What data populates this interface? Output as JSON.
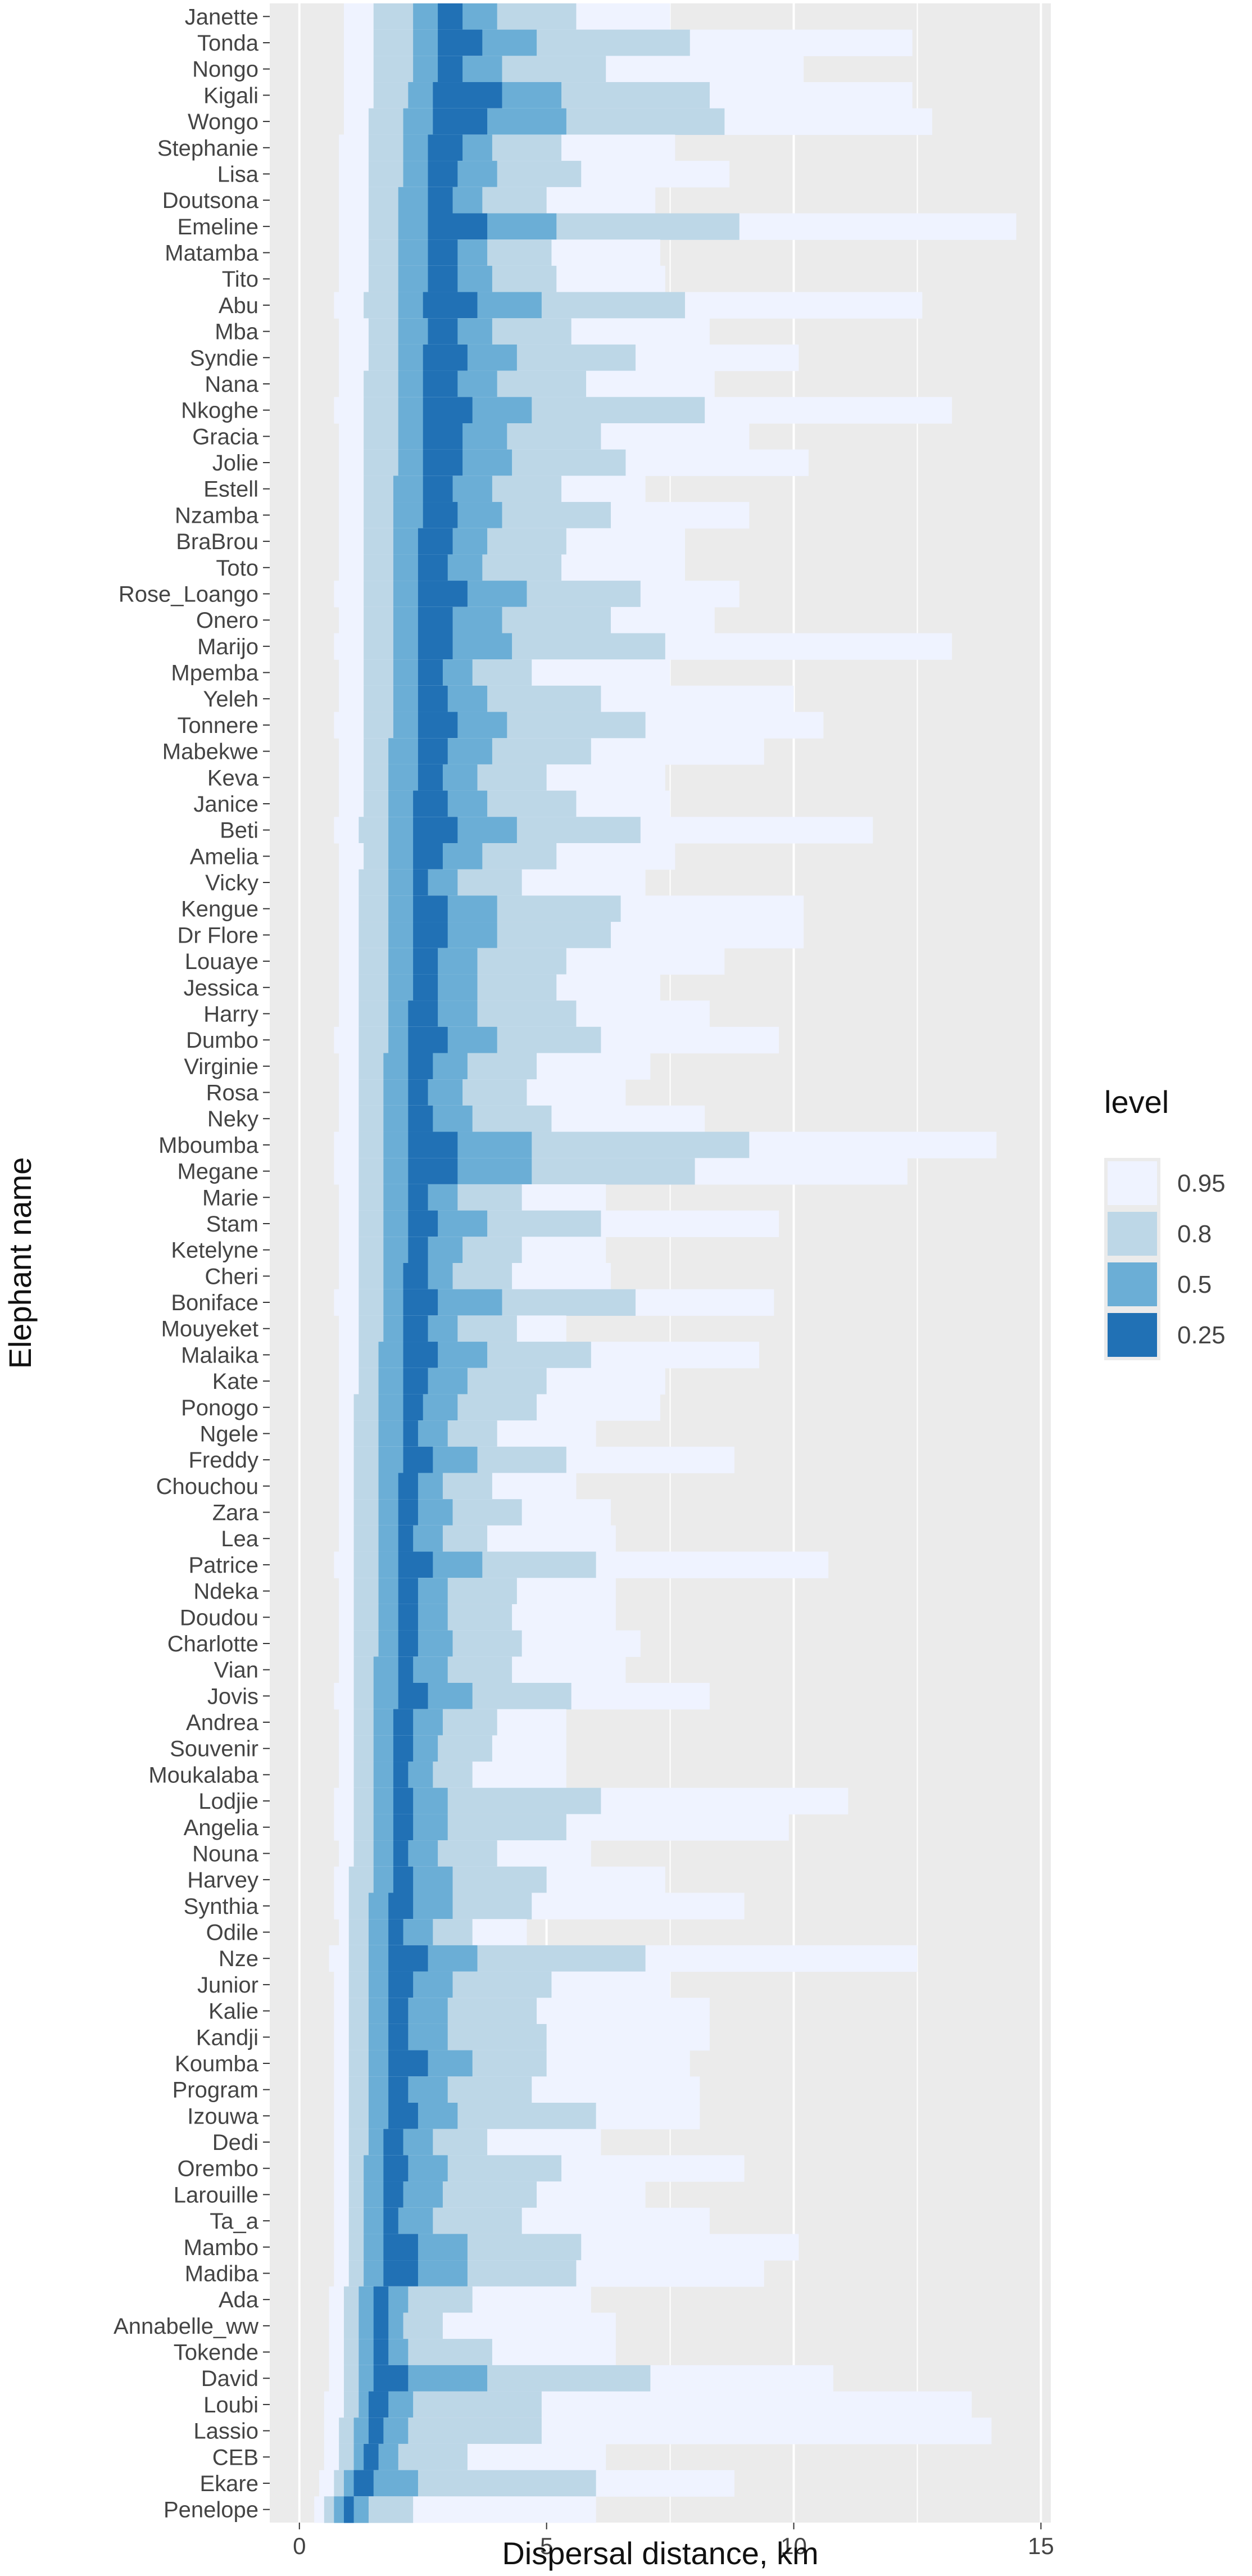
{
  "chart_data": {
    "type": "bar",
    "subtype": "stacked-interval-ranges",
    "title": "",
    "xlabel": "Dispersal distance, km",
    "ylabel": "Elephant name",
    "xlim": [
      -0.6,
      15.2
    ],
    "x_ticks": [
      0,
      5,
      10,
      15
    ],
    "x_tick_labels": [
      "0",
      "5",
      "10",
      "15"
    ],
    "grid": true,
    "legend": {
      "title": "level",
      "placement": "right",
      "entries": [
        {
          "label": "0.95",
          "color": "#eff3ff"
        },
        {
          "label": "0.8",
          "color": "#bdd7e7"
        },
        {
          "label": "0.5",
          "color": "#6baed6"
        },
        {
          "label": "0.25",
          "color": "#2171b5"
        }
      ]
    },
    "levels": [
      "0.95",
      "0.8",
      "0.5",
      "0.25"
    ],
    "colors": {
      "0.95": "#eff3ff",
      "0.8": "#bdd7e7",
      "0.5": "#6baed6",
      "0.25": "#2171b5",
      "panel": "#ebebeb",
      "grid": "#ffffff"
    },
    "interval_order": "[lo_0.95, hi_0.95, lo_0.8, hi_0.8, lo_0.5, hi_0.5, lo_0.25, hi_0.25] in km",
    "series": [
      {
        "name": "Janette",
        "intervals": [
          0.9,
          7.5,
          1.5,
          5.6,
          2.3,
          4.0,
          2.8,
          3.3
        ]
      },
      {
        "name": "Tonda",
        "intervals": [
          0.9,
          12.4,
          1.5,
          7.9,
          2.3,
          4.8,
          2.8,
          3.7
        ]
      },
      {
        "name": "Nongo",
        "intervals": [
          0.9,
          10.2,
          1.5,
          6.2,
          2.3,
          4.1,
          2.8,
          3.3
        ]
      },
      {
        "name": "Kigali",
        "intervals": [
          0.9,
          12.4,
          1.5,
          8.3,
          2.2,
          5.3,
          2.7,
          4.1
        ]
      },
      {
        "name": "Wongo",
        "intervals": [
          0.9,
          12.8,
          1.4,
          8.6,
          2.1,
          5.4,
          2.7,
          3.8
        ]
      },
      {
        "name": "Stephanie",
        "intervals": [
          0.8,
          7.6,
          1.4,
          5.3,
          2.1,
          3.9,
          2.6,
          3.3
        ]
      },
      {
        "name": "Lisa",
        "intervals": [
          0.8,
          8.7,
          1.4,
          5.7,
          2.1,
          4.0,
          2.6,
          3.2
        ]
      },
      {
        "name": "Doutsona",
        "intervals": [
          0.8,
          7.2,
          1.4,
          5.0,
          2.0,
          3.7,
          2.6,
          3.1
        ]
      },
      {
        "name": "Emeline",
        "intervals": [
          0.8,
          14.5,
          1.4,
          8.9,
          2.0,
          5.2,
          2.6,
          3.8
        ]
      },
      {
        "name": "Matamba",
        "intervals": [
          0.8,
          7.3,
          1.4,
          5.1,
          2.0,
          3.8,
          2.6,
          3.2
        ]
      },
      {
        "name": "Tito",
        "intervals": [
          0.8,
          7.4,
          1.4,
          5.2,
          2.0,
          3.9,
          2.6,
          3.2
        ]
      },
      {
        "name": "Abu",
        "intervals": [
          0.7,
          12.6,
          1.3,
          7.8,
          2.0,
          4.9,
          2.5,
          3.6
        ]
      },
      {
        "name": "Mba",
        "intervals": [
          0.8,
          8.3,
          1.4,
          5.5,
          2.0,
          3.9,
          2.6,
          3.2
        ]
      },
      {
        "name": "Syndie",
        "intervals": [
          0.8,
          10.1,
          1.4,
          6.8,
          2.0,
          4.4,
          2.5,
          3.4
        ]
      },
      {
        "name": "Nana",
        "intervals": [
          0.8,
          8.4,
          1.3,
          5.8,
          2.0,
          4.0,
          2.5,
          3.2
        ]
      },
      {
        "name": "Nkoghe",
        "intervals": [
          0.7,
          13.2,
          1.3,
          8.2,
          2.0,
          4.7,
          2.5,
          3.5
        ]
      },
      {
        "name": "Gracia",
        "intervals": [
          0.8,
          9.1,
          1.3,
          6.1,
          2.0,
          4.2,
          2.5,
          3.3
        ]
      },
      {
        "name": "Jolie",
        "intervals": [
          0.8,
          10.3,
          1.3,
          6.6,
          2.0,
          4.3,
          2.5,
          3.3
        ]
      },
      {
        "name": "Estell",
        "intervals": [
          0.8,
          7.0,
          1.3,
          5.3,
          1.9,
          3.9,
          2.5,
          3.1
        ]
      },
      {
        "name": "Nzamba",
        "intervals": [
          0.8,
          9.1,
          1.3,
          6.3,
          1.9,
          4.1,
          2.5,
          3.2
        ]
      },
      {
        "name": "BraBrou",
        "intervals": [
          0.8,
          7.8,
          1.3,
          5.4,
          1.9,
          3.8,
          2.4,
          3.1
        ]
      },
      {
        "name": "Toto",
        "intervals": [
          0.8,
          7.8,
          1.3,
          5.3,
          1.9,
          3.7,
          2.4,
          3.0
        ]
      },
      {
        "name": "Rose_Loango",
        "intervals": [
          0.7,
          8.9,
          1.3,
          6.9,
          1.9,
          4.6,
          2.4,
          3.4
        ]
      },
      {
        "name": "Onero",
        "intervals": [
          0.8,
          8.4,
          1.3,
          6.3,
          1.9,
          4.1,
          2.4,
          3.1
        ]
      },
      {
        "name": "Marijo",
        "intervals": [
          0.7,
          13.2,
          1.3,
          7.4,
          1.9,
          4.3,
          2.4,
          3.1
        ]
      },
      {
        "name": "Mpemba",
        "intervals": [
          0.8,
          7.5,
          1.3,
          4.7,
          1.9,
          3.5,
          2.4,
          2.9
        ]
      },
      {
        "name": "Yeleh",
        "intervals": [
          0.8,
          10.0,
          1.3,
          6.1,
          1.9,
          3.8,
          2.4,
          3.0
        ]
      },
      {
        "name": "Tonnere",
        "intervals": [
          0.7,
          10.6,
          1.3,
          7.0,
          1.9,
          4.2,
          2.4,
          3.2
        ]
      },
      {
        "name": "Mabekwe",
        "intervals": [
          0.8,
          9.4,
          1.3,
          5.9,
          1.8,
          3.9,
          2.4,
          3.0
        ]
      },
      {
        "name": "Keva",
        "intervals": [
          0.8,
          7.4,
          1.3,
          5.0,
          1.8,
          3.6,
          2.4,
          2.9
        ]
      },
      {
        "name": "Janice",
        "intervals": [
          0.8,
          7.5,
          1.3,
          5.6,
          1.8,
          3.8,
          2.3,
          3.0
        ]
      },
      {
        "name": "Beti",
        "intervals": [
          0.7,
          11.6,
          1.2,
          6.9,
          1.8,
          4.4,
          2.3,
          3.2
        ]
      },
      {
        "name": "Amelia",
        "intervals": [
          0.8,
          7.6,
          1.3,
          5.2,
          1.8,
          3.7,
          2.3,
          2.9
        ]
      },
      {
        "name": "Vicky",
        "intervals": [
          0.8,
          7.0,
          1.2,
          4.5,
          1.8,
          3.2,
          2.3,
          2.6
        ]
      },
      {
        "name": "Kengue",
        "intervals": [
          0.8,
          10.2,
          1.2,
          6.5,
          1.8,
          4.0,
          2.3,
          3.0
        ]
      },
      {
        "name": "Dr Flore",
        "intervals": [
          0.8,
          10.2,
          1.2,
          6.3,
          1.8,
          4.0,
          2.3,
          3.0
        ]
      },
      {
        "name": "Louaye",
        "intervals": [
          0.8,
          8.6,
          1.2,
          5.4,
          1.8,
          3.6,
          2.3,
          2.8
        ]
      },
      {
        "name": "Jessica",
        "intervals": [
          0.8,
          7.3,
          1.2,
          5.2,
          1.8,
          3.6,
          2.3,
          2.8
        ]
      },
      {
        "name": "Harry",
        "intervals": [
          0.8,
          8.3,
          1.2,
          5.6,
          1.8,
          3.6,
          2.2,
          2.8
        ]
      },
      {
        "name": "Dumbo",
        "intervals": [
          0.7,
          9.7,
          1.2,
          6.1,
          1.8,
          4.0,
          2.2,
          3.0
        ]
      },
      {
        "name": "Virginie",
        "intervals": [
          0.8,
          7.1,
          1.2,
          4.8,
          1.7,
          3.4,
          2.2,
          2.7
        ]
      },
      {
        "name": "Rosa",
        "intervals": [
          0.8,
          6.6,
          1.2,
          4.6,
          1.7,
          3.3,
          2.2,
          2.6
        ]
      },
      {
        "name": "Neky",
        "intervals": [
          0.8,
          8.2,
          1.2,
          5.1,
          1.7,
          3.5,
          2.2,
          2.7
        ]
      },
      {
        "name": "Mboumba",
        "intervals": [
          0.7,
          14.1,
          1.2,
          9.1,
          1.7,
          4.7,
          2.2,
          3.2
        ]
      },
      {
        "name": "Megane",
        "intervals": [
          0.7,
          12.3,
          1.2,
          8.0,
          1.7,
          4.7,
          2.2,
          3.2
        ]
      },
      {
        "name": "Marie",
        "intervals": [
          0.8,
          6.2,
          1.2,
          4.5,
          1.7,
          3.2,
          2.2,
          2.6
        ]
      },
      {
        "name": "Stam",
        "intervals": [
          0.8,
          9.7,
          1.2,
          6.1,
          1.7,
          3.8,
          2.2,
          2.8
        ]
      },
      {
        "name": "Ketelyne",
        "intervals": [
          0.8,
          6.2,
          1.2,
          4.5,
          1.7,
          3.3,
          2.2,
          2.6
        ]
      },
      {
        "name": "Cheri",
        "intervals": [
          0.8,
          6.3,
          1.2,
          4.3,
          1.7,
          3.1,
          2.1,
          2.6
        ]
      },
      {
        "name": "Boniface",
        "intervals": [
          0.7,
          9.6,
          1.2,
          6.8,
          1.7,
          4.1,
          2.1,
          2.8
        ]
      },
      {
        "name": "Mouyeket",
        "intervals": [
          0.8,
          5.4,
          1.2,
          4.4,
          1.7,
          3.2,
          2.1,
          2.6
        ]
      },
      {
        "name": "Malaika",
        "intervals": [
          0.8,
          9.3,
          1.2,
          5.9,
          1.6,
          3.8,
          2.1,
          2.8
        ]
      },
      {
        "name": "Kate",
        "intervals": [
          0.8,
          7.4,
          1.2,
          5.0,
          1.6,
          3.4,
          2.1,
          2.6
        ]
      },
      {
        "name": "Ponogo",
        "intervals": [
          0.8,
          7.3,
          1.1,
          4.8,
          1.6,
          3.2,
          2.1,
          2.5
        ]
      },
      {
        "name": "Ngele",
        "intervals": [
          0.8,
          6.0,
          1.1,
          4.0,
          1.6,
          3.0,
          2.1,
          2.4
        ]
      },
      {
        "name": "Freddy",
        "intervals": [
          0.8,
          8.8,
          1.1,
          5.4,
          1.6,
          3.6,
          2.1,
          2.7
        ]
      },
      {
        "name": "Chouchou",
        "intervals": [
          0.8,
          5.6,
          1.1,
          3.9,
          1.6,
          2.9,
          2.0,
          2.4
        ]
      },
      {
        "name": "Zara",
        "intervals": [
          0.8,
          6.3,
          1.1,
          4.5,
          1.6,
          3.1,
          2.0,
          2.4
        ]
      },
      {
        "name": "Lea",
        "intervals": [
          0.8,
          6.4,
          1.1,
          3.8,
          1.6,
          2.9,
          2.0,
          2.3
        ]
      },
      {
        "name": "Patrice",
        "intervals": [
          0.7,
          10.7,
          1.1,
          6.0,
          1.6,
          3.7,
          2.0,
          2.7
        ]
      },
      {
        "name": "Ndeka",
        "intervals": [
          0.8,
          6.4,
          1.1,
          4.4,
          1.6,
          3.0,
          2.0,
          2.4
        ]
      },
      {
        "name": "Doudou",
        "intervals": [
          0.8,
          6.4,
          1.1,
          4.3,
          1.6,
          3.0,
          2.0,
          2.4
        ]
      },
      {
        "name": "Charlotte",
        "intervals": [
          0.8,
          6.9,
          1.1,
          4.5,
          1.6,
          3.1,
          2.0,
          2.4
        ]
      },
      {
        "name": "Vian",
        "intervals": [
          0.8,
          6.6,
          1.1,
          4.3,
          1.5,
          3.0,
          2.0,
          2.3
        ]
      },
      {
        "name": "Jovis",
        "intervals": [
          0.7,
          8.3,
          1.1,
          5.5,
          1.5,
          3.5,
          2.0,
          2.6
        ]
      },
      {
        "name": "Andrea",
        "intervals": [
          0.8,
          5.4,
          1.1,
          4.0,
          1.5,
          2.9,
          1.9,
          2.3
        ]
      },
      {
        "name": "Souvenir",
        "intervals": [
          0.8,
          5.4,
          1.1,
          3.9,
          1.5,
          2.8,
          1.9,
          2.3
        ]
      },
      {
        "name": "Moukalaba",
        "intervals": [
          0.8,
          5.4,
          1.1,
          3.5,
          1.5,
          2.7,
          1.9,
          2.2
        ]
      },
      {
        "name": "Lodjie",
        "intervals": [
          0.7,
          11.1,
          1.1,
          6.1,
          1.5,
          3.0,
          1.9,
          2.3
        ]
      },
      {
        "name": "Angelia",
        "intervals": [
          0.7,
          9.9,
          1.1,
          5.4,
          1.5,
          3.0,
          1.9,
          2.3
        ]
      },
      {
        "name": "Nouna",
        "intervals": [
          0.8,
          5.9,
          1.1,
          4.0,
          1.5,
          2.8,
          1.9,
          2.2
        ]
      },
      {
        "name": "Harvey",
        "intervals": [
          0.7,
          7.4,
          1.0,
          5.0,
          1.5,
          3.1,
          1.9,
          2.3
        ]
      },
      {
        "name": "Synthia",
        "intervals": [
          0.7,
          9.0,
          1.0,
          4.7,
          1.4,
          3.1,
          1.8,
          2.3
        ]
      },
      {
        "name": "Odile",
        "intervals": [
          0.8,
          4.6,
          1.0,
          3.5,
          1.4,
          2.7,
          1.8,
          2.1
        ]
      },
      {
        "name": "Nze",
        "intervals": [
          0.6,
          12.5,
          1.0,
          7.0,
          1.4,
          3.6,
          1.8,
          2.6
        ]
      },
      {
        "name": "Junior",
        "intervals": [
          0.7,
          7.5,
          1.0,
          5.1,
          1.4,
          3.1,
          1.8,
          2.3
        ]
      },
      {
        "name": "Kalie",
        "intervals": [
          0.7,
          8.3,
          1.0,
          4.8,
          1.4,
          3.0,
          1.8,
          2.2
        ]
      },
      {
        "name": "Kandji",
        "intervals": [
          0.7,
          8.3,
          1.0,
          5.0,
          1.4,
          3.0,
          1.8,
          2.2
        ]
      },
      {
        "name": "Koumba",
        "intervals": [
          0.7,
          7.9,
          1.0,
          5.0,
          1.4,
          3.5,
          1.8,
          2.6
        ]
      },
      {
        "name": "Program",
        "intervals": [
          0.7,
          8.1,
          1.0,
          4.7,
          1.4,
          3.0,
          1.8,
          2.2
        ]
      },
      {
        "name": "Izouwa",
        "intervals": [
          0.7,
          8.1,
          1.0,
          6.0,
          1.4,
          3.2,
          1.8,
          2.4
        ]
      },
      {
        "name": "Dedi",
        "intervals": [
          0.7,
          6.1,
          1.0,
          3.8,
          1.4,
          2.7,
          1.7,
          2.1
        ]
      },
      {
        "name": "Orembo",
        "intervals": [
          0.7,
          9.0,
          1.0,
          5.3,
          1.3,
          3.0,
          1.7,
          2.2
        ]
      },
      {
        "name": "Larouille",
        "intervals": [
          0.7,
          7.0,
          1.0,
          4.8,
          1.3,
          2.9,
          1.7,
          2.1
        ]
      },
      {
        "name": "Ta_a",
        "intervals": [
          0.7,
          8.3,
          1.0,
          4.5,
          1.3,
          2.7,
          1.7,
          2.0
        ]
      },
      {
        "name": "Mambo",
        "intervals": [
          0.7,
          10.1,
          1.0,
          5.7,
          1.3,
          3.4,
          1.7,
          2.4
        ]
      },
      {
        "name": "Madiba",
        "intervals": [
          0.7,
          9.4,
          1.0,
          5.6,
          1.3,
          3.4,
          1.7,
          2.4
        ]
      },
      {
        "name": "Ada",
        "intervals": [
          0.6,
          5.9,
          0.9,
          3.5,
          1.2,
          2.2,
          1.5,
          1.8
        ]
      },
      {
        "name": "Annabelle_ww",
        "intervals": [
          0.6,
          6.4,
          0.9,
          2.9,
          1.2,
          2.1,
          1.5,
          1.8
        ]
      },
      {
        "name": "Tokende",
        "intervals": [
          0.6,
          6.4,
          0.9,
          3.9,
          1.2,
          2.2,
          1.5,
          1.8
        ]
      },
      {
        "name": "David",
        "intervals": [
          0.6,
          10.8,
          0.9,
          7.1,
          1.2,
          3.8,
          1.5,
          2.2
        ]
      },
      {
        "name": "Loubi",
        "intervals": [
          0.5,
          13.6,
          0.9,
          4.9,
          1.2,
          2.3,
          1.4,
          1.8
        ]
      },
      {
        "name": "Lassio",
        "intervals": [
          0.5,
          14.0,
          0.8,
          4.9,
          1.1,
          2.2,
          1.4,
          1.7
        ]
      },
      {
        "name": "CEB",
        "intervals": [
          0.5,
          6.2,
          0.8,
          3.4,
          1.1,
          2.0,
          1.3,
          1.6
        ]
      },
      {
        "name": "Ekare",
        "intervals": [
          0.4,
          8.8,
          0.7,
          6.0,
          0.9,
          2.4,
          1.1,
          1.5
        ]
      },
      {
        "name": "Penelope",
        "intervals": [
          0.3,
          6.0,
          0.5,
          2.3,
          0.7,
          1.4,
          0.9,
          1.1
        ]
      }
    ]
  }
}
